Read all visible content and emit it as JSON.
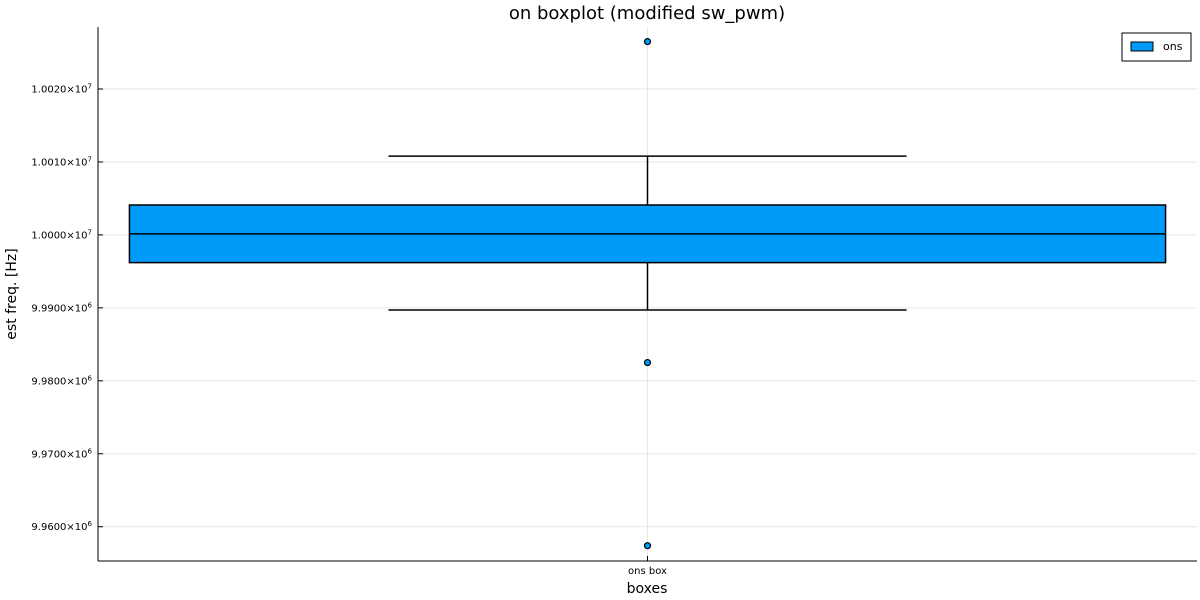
{
  "chart_data": {
    "type": "boxplot",
    "title": "on boxplot (modified sw_pwm)",
    "xlabel": "boxes",
    "ylabel": "est freq. [Hz]",
    "categories": [
      "ons box"
    ],
    "series": [
      {
        "name": "ons",
        "color": "#009af9",
        "boxes": [
          {
            "category": "ons box",
            "whisker_low": 9989700,
            "q1": 9996200,
            "median": 10000150,
            "q3": 10004100,
            "whisker_high": 10010800,
            "outliers": [
              10026500,
              9982500,
              9957400
            ]
          }
        ]
      }
    ],
    "yticks": [
      {
        "value": 9960000,
        "mantissa": "9.9600",
        "exponent": "6"
      },
      {
        "value": 9970000,
        "mantissa": "9.9700",
        "exponent": "6"
      },
      {
        "value": 9980000,
        "mantissa": "9.9800",
        "exponent": "6"
      },
      {
        "value": 9990000,
        "mantissa": "9.9900",
        "exponent": "6"
      },
      {
        "value": 10000000,
        "mantissa": "1.0000",
        "exponent": "7"
      },
      {
        "value": 10010000,
        "mantissa": "1.0010",
        "exponent": "7"
      },
      {
        "value": 10020000,
        "mantissa": "1.0020",
        "exponent": "7"
      }
    ],
    "ylim": [
      9955300,
      10028500
    ],
    "grid": true,
    "legend_position": "top-right"
  }
}
